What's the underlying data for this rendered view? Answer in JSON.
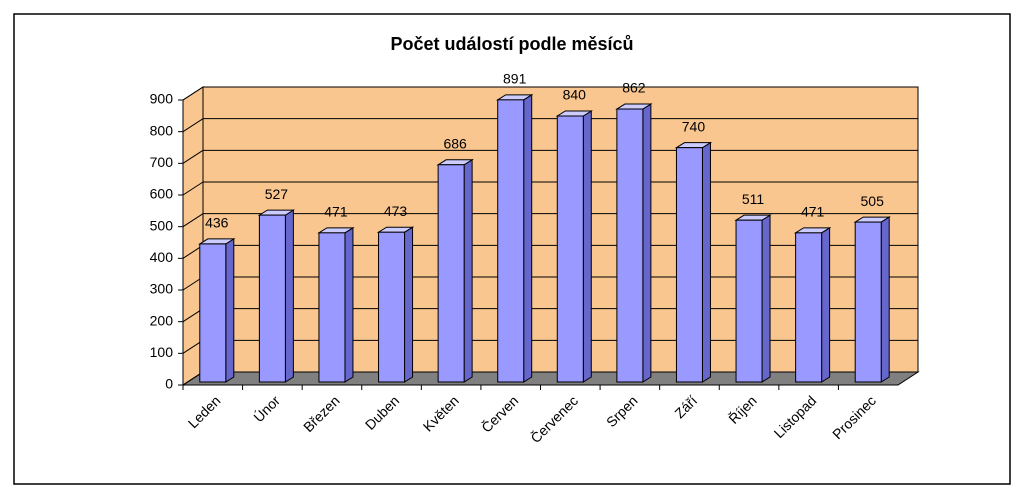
{
  "chart_data": {
    "type": "bar3d",
    "title": "Počet událostí podle měsíců",
    "categories": [
      "Leden",
      "Únor",
      "Březen",
      "Duben",
      "Květen",
      "Červen",
      "Červenec",
      "Srpen",
      "Září",
      "Říjen",
      "Listopad",
      "Prosinec"
    ],
    "values": [
      436,
      527,
      471,
      473,
      686,
      891,
      840,
      862,
      740,
      511,
      471,
      505
    ],
    "color": "#9999ff",
    "wall_color": "#f9c690",
    "floor_color": "#808080",
    "ylim": [
      0,
      900
    ],
    "yticks": [
      0,
      100,
      200,
      300,
      400,
      500,
      600,
      700,
      800,
      900
    ],
    "grid": true
  }
}
